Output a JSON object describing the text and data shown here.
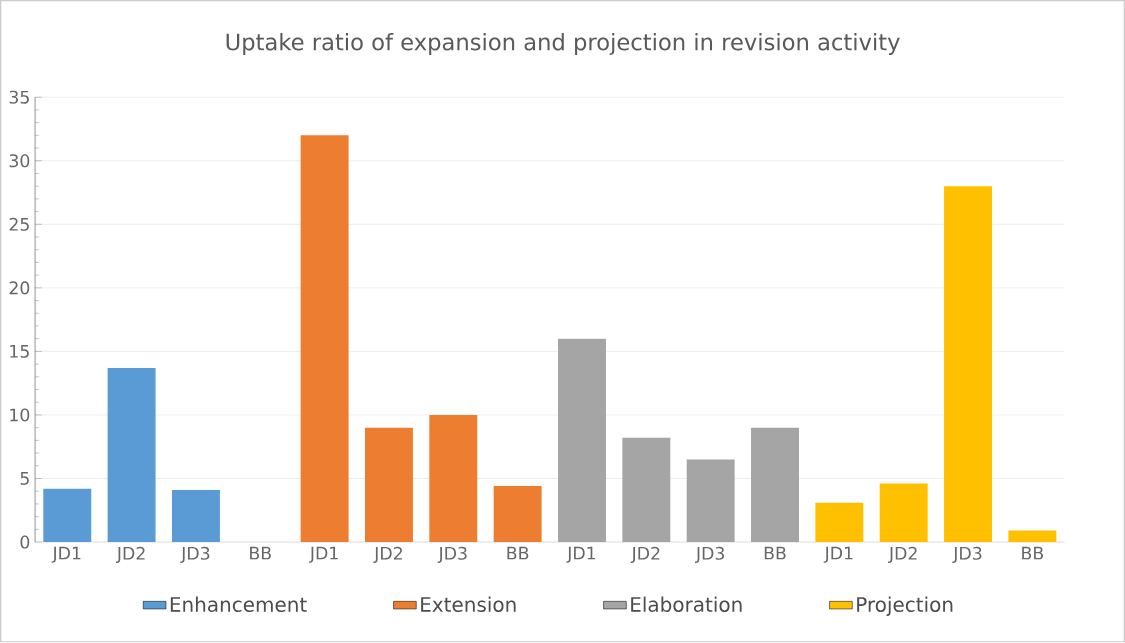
{
  "chart_data": {
    "type": "bar",
    "title": "Uptake ratio of expansion and projection in revision activity",
    "categories": [
      "JD1",
      "JD2",
      "JD3",
      "BB",
      "JD1",
      "JD2",
      "JD3",
      "BB",
      "JD1",
      "JD2",
      "JD3",
      "BB",
      "JD1",
      "JD2",
      "JD3",
      "BB"
    ],
    "series": [
      {
        "name": "Enhancement",
        "color": "#5b9bd5",
        "values": [
          4.2,
          13.7,
          4.1,
          null,
          null,
          null,
          null,
          null,
          null,
          null,
          null,
          null,
          null,
          null,
          null,
          null
        ]
      },
      {
        "name": "Extension",
        "color": "#ed7d31",
        "values": [
          null,
          null,
          null,
          null,
          32.0,
          9.0,
          10.0,
          4.4,
          null,
          null,
          null,
          null,
          null,
          null,
          null,
          null
        ]
      },
      {
        "name": "Elaboration",
        "color": "#a5a5a5",
        "values": [
          null,
          null,
          null,
          null,
          null,
          null,
          null,
          null,
          16.0,
          8.2,
          6.5,
          9.0,
          null,
          null,
          null,
          null
        ]
      },
      {
        "name": "Projection",
        "color": "#ffc000",
        "values": [
          null,
          null,
          null,
          null,
          null,
          null,
          null,
          null,
          null,
          null,
          null,
          null,
          3.1,
          4.6,
          28.0,
          0.9
        ]
      }
    ],
    "ylim": [
      0,
      35
    ],
    "yticks": [
      0,
      5,
      10,
      15,
      20,
      25,
      30,
      35
    ],
    "grid": "y",
    "legend": "bottom"
  }
}
